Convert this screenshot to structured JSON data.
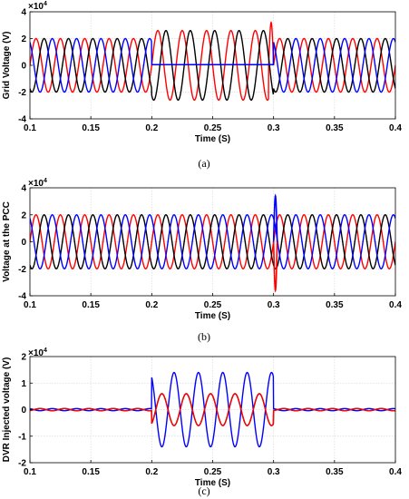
{
  "chart_data": [
    {
      "type": "line",
      "caption": "(a)",
      "ylabel": "Grid Voltage (V)",
      "xlabel": "Time (S)",
      "exponent": "×10",
      "exponent_power": "4",
      "xlim": [
        0.1,
        0.4
      ],
      "ylim": [
        -4,
        4
      ],
      "xticks": [
        "0.1",
        "0.15",
        "0.2",
        "0.25",
        "0.3",
        "0.35",
        "0.4"
      ],
      "yticks": [
        "-4",
        "-2",
        "0",
        "2",
        "4"
      ],
      "grid": true,
      "frequency_hz": 50,
      "event": {
        "start": 0.2,
        "end": 0.3
      },
      "series": [
        {
          "color": "#ff0000",
          "phase_deg": 0,
          "amplitude_normal": 2,
          "amplitude_event": 2.6,
          "spike_at_end": 3.2
        },
        {
          "color": "#000000",
          "phase_deg": -120,
          "amplitude_normal": 2,
          "amplitude_event": 2.6
        },
        {
          "color": "#0000ff",
          "phase_deg": 120,
          "amplitude_normal": 2,
          "amplitude_event": 0.0,
          "event_offset": 0.05
        }
      ]
    },
    {
      "type": "line",
      "caption": "(b)",
      "ylabel": "Voltage at the PCC",
      "xlabel": "Time (S)",
      "exponent": "×10",
      "exponent_power": "4",
      "xlim": [
        0.1,
        0.4
      ],
      "ylim": [
        -4,
        4
      ],
      "xticks": [
        "0.1",
        "0.15",
        "0.2",
        "0.25",
        "0.3",
        "0.35",
        "0.4"
      ],
      "yticks": [
        "-4",
        "-2",
        "0",
        "2",
        "4"
      ],
      "grid": true,
      "frequency_hz": 50,
      "spikes": [
        {
          "t": 0.3,
          "color": "#0000ff",
          "value": 3.4
        },
        {
          "t": 0.3,
          "color": "#ff0000",
          "value": -3.6
        }
      ],
      "series": [
        {
          "color": "#ff0000",
          "phase_deg": 0,
          "amplitude": 2
        },
        {
          "color": "#000000",
          "phase_deg": -120,
          "amplitude": 2
        },
        {
          "color": "#0000ff",
          "phase_deg": 120,
          "amplitude": 2
        }
      ]
    },
    {
      "type": "line",
      "caption": "(c)",
      "ylabel": "DVR Injected voltage (V)",
      "xlabel": "Time (S)",
      "exponent": "×10",
      "exponent_power": "4",
      "xlim": [
        0.1,
        0.4
      ],
      "ylim": [
        -2,
        2
      ],
      "xticks": [
        "0.1",
        "0.15",
        "0.2",
        "0.25",
        "0.3",
        "0.35",
        "0.4"
      ],
      "yticks": [
        "-2",
        "-1",
        "0",
        "1",
        "2"
      ],
      "grid": true,
      "frequency_hz": 50,
      "event": {
        "start": 0.2,
        "end": 0.3
      },
      "series": [
        {
          "color": "#0000ff",
          "phase_deg": 120,
          "amplitude_event": 1.4,
          "dashed_outside": true
        },
        {
          "color": "#000000",
          "phase_deg": -60,
          "amplitude_event": 0.6,
          "dashed_outside": true
        },
        {
          "color": "#ff0000",
          "phase_deg": -60,
          "amplitude_event": 0.6,
          "dashed_outside": true
        }
      ]
    }
  ]
}
